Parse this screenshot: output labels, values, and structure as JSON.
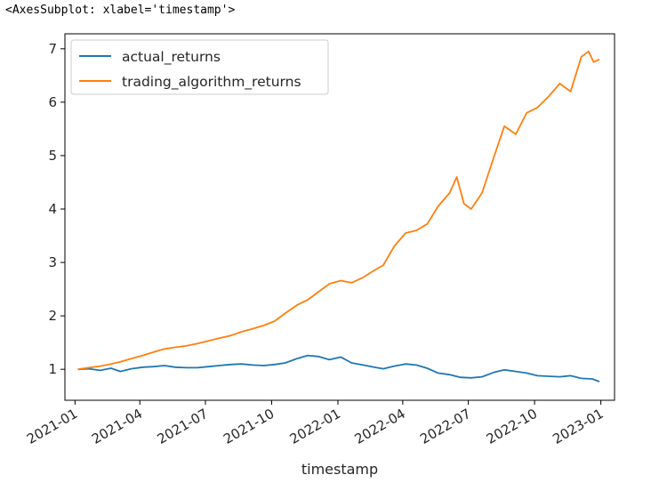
{
  "output_repr": "<AxesSubplot: xlabel='timestamp'>",
  "chart_data": {
    "type": "line",
    "xlabel": "timestamp",
    "ylabel": "",
    "ylim": [
      0.42,
      7.28
    ],
    "xlim": [
      "2020-12-18",
      "2023-01-20"
    ],
    "yticks": [
      1,
      2,
      3,
      4,
      5,
      6,
      7
    ],
    "xticks": [
      {
        "date": "2021-01-01",
        "label": "2021-01"
      },
      {
        "date": "2021-04-01",
        "label": "2021-04"
      },
      {
        "date": "2021-07-01",
        "label": "2021-07"
      },
      {
        "date": "2021-10-01",
        "label": "2021-10"
      },
      {
        "date": "2022-01-01",
        "label": "2022-01"
      },
      {
        "date": "2022-04-01",
        "label": "2022-04"
      },
      {
        "date": "2022-07-01",
        "label": "2022-07"
      },
      {
        "date": "2022-10-01",
        "label": "2022-10"
      },
      {
        "date": "2023-01-01",
        "label": "2023-01"
      }
    ],
    "grid": false,
    "legend_position": "top-left",
    "series": [
      {
        "name": "actual_returns",
        "color": "#1f77b4",
        "points": [
          [
            "2021-01-05",
            1.0
          ],
          [
            "2021-01-20",
            1.01
          ],
          [
            "2021-02-05",
            0.98
          ],
          [
            "2021-02-20",
            1.02
          ],
          [
            "2021-03-05",
            0.96
          ],
          [
            "2021-03-20",
            1.01
          ],
          [
            "2021-04-05",
            1.04
          ],
          [
            "2021-04-20",
            1.05
          ],
          [
            "2021-05-05",
            1.07
          ],
          [
            "2021-05-20",
            1.04
          ],
          [
            "2021-06-05",
            1.03
          ],
          [
            "2021-06-20",
            1.03
          ],
          [
            "2021-07-05",
            1.05
          ],
          [
            "2021-07-20",
            1.07
          ],
          [
            "2021-08-05",
            1.09
          ],
          [
            "2021-08-20",
            1.1
          ],
          [
            "2021-09-05",
            1.08
          ],
          [
            "2021-09-20",
            1.07
          ],
          [
            "2021-10-05",
            1.09
          ],
          [
            "2021-10-20",
            1.12
          ],
          [
            "2021-11-05",
            1.2
          ],
          [
            "2021-11-20",
            1.26
          ],
          [
            "2021-12-05",
            1.24
          ],
          [
            "2021-12-20",
            1.18
          ],
          [
            "2022-01-05",
            1.23
          ],
          [
            "2022-01-20",
            1.12
          ],
          [
            "2022-02-05",
            1.08
          ],
          [
            "2022-02-20",
            1.04
          ],
          [
            "2022-03-05",
            1.01
          ],
          [
            "2022-03-20",
            1.06
          ],
          [
            "2022-04-05",
            1.1
          ],
          [
            "2022-04-20",
            1.08
          ],
          [
            "2022-05-05",
            1.02
          ],
          [
            "2022-05-20",
            0.93
          ],
          [
            "2022-06-05",
            0.9
          ],
          [
            "2022-06-20",
            0.85
          ],
          [
            "2022-07-05",
            0.84
          ],
          [
            "2022-07-20",
            0.86
          ],
          [
            "2022-08-05",
            0.94
          ],
          [
            "2022-08-20",
            0.99
          ],
          [
            "2022-09-05",
            0.96
          ],
          [
            "2022-09-20",
            0.93
          ],
          [
            "2022-10-05",
            0.88
          ],
          [
            "2022-10-20",
            0.87
          ],
          [
            "2022-11-05",
            0.86
          ],
          [
            "2022-11-20",
            0.88
          ],
          [
            "2022-12-05",
            0.83
          ],
          [
            "2022-12-20",
            0.82
          ],
          [
            "2022-12-30",
            0.77
          ]
        ]
      },
      {
        "name": "trading_algorithm_returns",
        "color": "#ff7f0e",
        "points": [
          [
            "2021-01-05",
            1.0
          ],
          [
            "2021-01-20",
            1.03
          ],
          [
            "2021-02-05",
            1.06
          ],
          [
            "2021-02-20",
            1.1
          ],
          [
            "2021-03-05",
            1.14
          ],
          [
            "2021-03-20",
            1.2
          ],
          [
            "2021-04-05",
            1.26
          ],
          [
            "2021-04-20",
            1.32
          ],
          [
            "2021-05-05",
            1.38
          ],
          [
            "2021-05-20",
            1.41
          ],
          [
            "2021-06-05",
            1.44
          ],
          [
            "2021-06-20",
            1.48
          ],
          [
            "2021-07-05",
            1.53
          ],
          [
            "2021-07-20",
            1.58
          ],
          [
            "2021-08-05",
            1.63
          ],
          [
            "2021-08-20",
            1.7
          ],
          [
            "2021-09-05",
            1.76
          ],
          [
            "2021-09-20",
            1.82
          ],
          [
            "2021-10-05",
            1.9
          ],
          [
            "2021-10-20",
            2.05
          ],
          [
            "2021-11-05",
            2.2
          ],
          [
            "2021-11-20",
            2.3
          ],
          [
            "2021-12-05",
            2.45
          ],
          [
            "2021-12-20",
            2.6
          ],
          [
            "2022-01-05",
            2.66
          ],
          [
            "2022-01-20",
            2.62
          ],
          [
            "2022-02-05",
            2.72
          ],
          [
            "2022-02-20",
            2.85
          ],
          [
            "2022-03-05",
            2.95
          ],
          [
            "2022-03-20",
            3.3
          ],
          [
            "2022-04-05",
            3.55
          ],
          [
            "2022-04-20",
            3.6
          ],
          [
            "2022-05-05",
            3.72
          ],
          [
            "2022-05-20",
            4.05
          ],
          [
            "2022-06-05",
            4.3
          ],
          [
            "2022-06-15",
            4.6
          ],
          [
            "2022-06-25",
            4.1
          ],
          [
            "2022-07-05",
            4.0
          ],
          [
            "2022-07-20",
            4.3
          ],
          [
            "2022-08-05",
            4.95
          ],
          [
            "2022-08-20",
            5.55
          ],
          [
            "2022-09-05",
            5.4
          ],
          [
            "2022-09-20",
            5.8
          ],
          [
            "2022-10-05",
            5.9
          ],
          [
            "2022-10-20",
            6.1
          ],
          [
            "2022-11-05",
            6.35
          ],
          [
            "2022-11-20",
            6.2
          ],
          [
            "2022-12-05",
            6.85
          ],
          [
            "2022-12-15",
            6.95
          ],
          [
            "2022-12-22",
            6.75
          ],
          [
            "2022-12-30",
            6.8
          ]
        ]
      }
    ]
  }
}
